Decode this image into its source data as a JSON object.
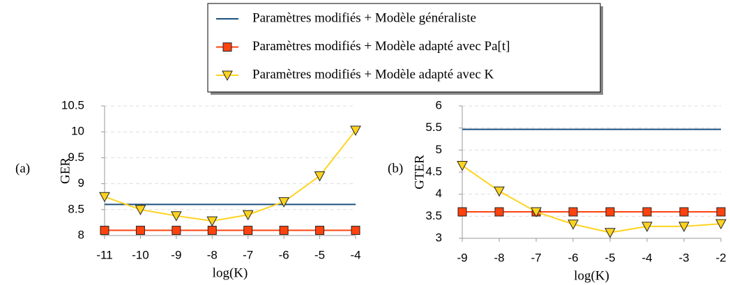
{
  "legend_entries_from": "chart_data.0.series",
  "chart_data": [
    {
      "type": "line",
      "panel_label": "(a)",
      "xlabel": "log(K)",
      "ylabel": "GER",
      "x": [
        -11,
        -10,
        -9,
        -8,
        -7,
        -6,
        -5,
        -4
      ],
      "xlim": [
        -11,
        -4
      ],
      "xticks": [
        -11,
        -10,
        -9,
        -8,
        -7,
        -6,
        -5,
        -4
      ],
      "ylim": [
        8,
        10.5
      ],
      "yticks": [
        8,
        8.5,
        9,
        9.5,
        10,
        10.5
      ],
      "grid": true,
      "series": [
        {
          "name": "Paramètres modifiés + Modèle généraliste",
          "color": "#1b4f7e",
          "marker": "none",
          "values": [
            8.6,
            8.6,
            8.6,
            8.6,
            8.6,
            8.6,
            8.6,
            8.6
          ]
        },
        {
          "name": "Paramètres modifiés + Modèle adapté avec Pa[t]",
          "color": "#ff420e",
          "marker": "square",
          "values": [
            8.1,
            8.1,
            8.1,
            8.1,
            8.1,
            8.1,
            8.1,
            8.1
          ]
        },
        {
          "name": "Paramètres modifiés + Modèle adapté avec K",
          "color": "#ffd320",
          "marker": "triangle-down",
          "values": [
            8.75,
            8.5,
            8.38,
            8.28,
            8.4,
            8.65,
            9.15,
            10.03
          ]
        }
      ]
    },
    {
      "type": "line",
      "panel_label": "(b)",
      "xlabel": "log(K)",
      "ylabel": "GTER",
      "x": [
        -9,
        -8,
        -7,
        -6,
        -5,
        -4,
        -3,
        -2
      ],
      "xlim": [
        -9,
        -2
      ],
      "xticks": [
        -9,
        -8,
        -7,
        -6,
        -5,
        -4,
        -3,
        -2
      ],
      "ylim": [
        3,
        6
      ],
      "yticks": [
        3,
        3.5,
        4,
        4.5,
        5,
        5.5,
        6
      ],
      "grid": true,
      "series": [
        {
          "color": "#1b4f7e",
          "marker": "none",
          "values": [
            5.47,
            5.47,
            5.47,
            5.47,
            5.47,
            5.47,
            5.47,
            5.47
          ]
        },
        {
          "color": "#ff420e",
          "marker": "square",
          "values": [
            3.6,
            3.6,
            3.6,
            3.6,
            3.6,
            3.6,
            3.6,
            3.6
          ]
        },
        {
          "color": "#ffd320",
          "marker": "triangle-down",
          "values": [
            4.65,
            4.07,
            3.6,
            3.32,
            3.13,
            3.27,
            3.27,
            3.33
          ]
        }
      ]
    }
  ]
}
